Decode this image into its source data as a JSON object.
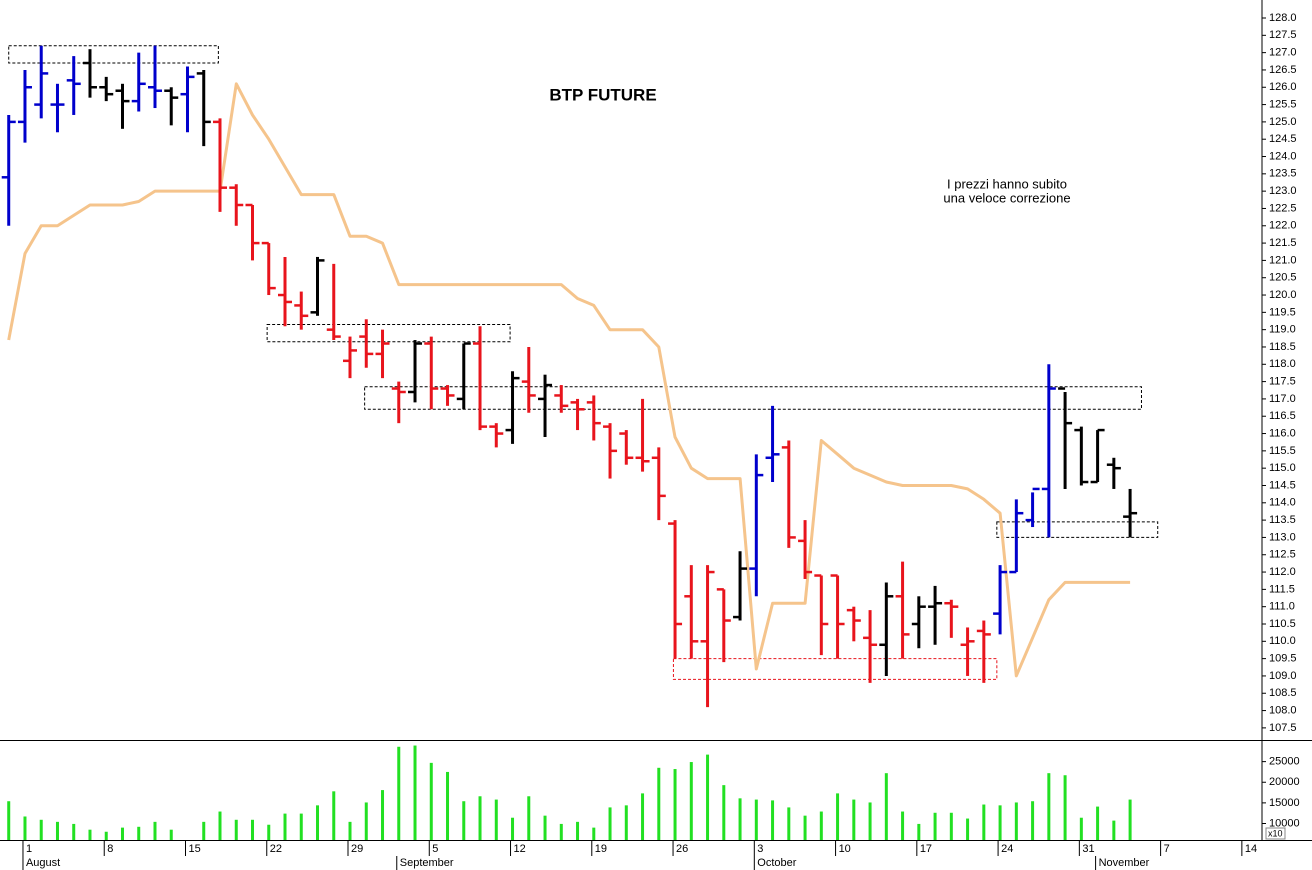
{
  "chart_data": [
    {
      "type": "ohlc",
      "title": "BTP  FUTURE",
      "annotation": [
        "I prezzi hanno subito",
        "una veloce correzione"
      ],
      "categories": [
        null,
        "1",
        null,
        null,
        null,
        null,
        "8",
        null,
        null,
        null,
        null,
        "15",
        null,
        null,
        null,
        null,
        "22",
        null,
        null,
        null,
        null,
        "29",
        null,
        null,
        null,
        null,
        "5",
        null,
        null,
        null,
        null,
        "12",
        null,
        null,
        null,
        null,
        "19",
        null,
        null,
        null,
        null,
        "26",
        null,
        null,
        null,
        null,
        "3",
        null,
        null,
        null,
        null,
        "10",
        null,
        null,
        null,
        null,
        "17",
        null,
        null,
        null,
        null,
        "24",
        null,
        null,
        null,
        null,
        "31",
        null,
        null,
        null,
        null,
        "7",
        null,
        null,
        null,
        null,
        "14"
      ],
      "months": [
        {
          "label": "August",
          "index": 1
        },
        {
          "label": "September",
          "index": 24
        },
        {
          "label": "October",
          "index": 46
        },
        {
          "label": "November",
          "index": 67
        }
      ],
      "open": [
        123.4,
        125.0,
        125.5,
        125.5,
        126.2,
        126.7,
        126.0,
        125.9,
        125.6,
        126.0,
        125.9,
        125.8,
        126.4,
        125.0,
        123.1,
        122.6,
        121.5,
        120.0,
        119.7,
        119.5,
        119.0,
        118.1,
        118.8,
        118.3,
        117.3,
        117.2,
        118.6,
        117.3,
        117.0,
        118.6,
        116.2,
        116.1,
        117.5,
        117.0,
        117.1,
        116.9,
        116.9,
        116.2,
        116.0,
        115.3,
        115.3,
        113.4,
        111.3,
        110.0,
        111.5,
        110.7,
        112.1,
        115.3,
        115.6,
        112.9,
        111.9,
        111.9,
        110.9,
        110.1,
        109.9,
        111.3,
        110.5,
        111.0,
        111.1,
        109.9,
        110.3,
        110.8,
        112.0,
        113.5,
        114.4,
        117.3,
        116.1,
        114.6,
        115.1,
        113.6,
        null,
        null,
        null,
        null,
        null,
        null,
        null
      ],
      "high": [
        125.2,
        126.5,
        127.2,
        126.1,
        126.9,
        127.1,
        126.3,
        126.1,
        127.0,
        127.2,
        126.0,
        126.6,
        126.5,
        125.1,
        123.2,
        122.6,
        121.5,
        121.1,
        120.1,
        121.1,
        120.9,
        118.8,
        119.3,
        119.0,
        117.5,
        118.7,
        118.8,
        117.4,
        118.6,
        119.1,
        116.3,
        117.8,
        118.5,
        117.7,
        117.4,
        117.0,
        117.1,
        116.3,
        116.1,
        117.0,
        115.6,
        113.5,
        112.2,
        112.2,
        111.5,
        112.6,
        115.4,
        116.8,
        115.8,
        113.5,
        111.9,
        111.9,
        111.0,
        110.9,
        111.7,
        112.3,
        111.3,
        111.6,
        111.2,
        110.4,
        110.6,
        112.2,
        114.1,
        114.3,
        118.0,
        117.2,
        116.2,
        116.1,
        115.3,
        114.4,
        null,
        null,
        null,
        null,
        null,
        null,
        null
      ],
      "low": [
        122.0,
        124.4,
        125.1,
        124.7,
        125.2,
        125.7,
        125.6,
        124.8,
        125.3,
        125.4,
        124.9,
        124.7,
        124.3,
        122.4,
        122.0,
        121.0,
        120.0,
        119.1,
        119.0,
        119.4,
        118.7,
        117.6,
        117.9,
        117.6,
        116.3,
        116.9,
        116.7,
        116.8,
        116.7,
        116.1,
        115.6,
        115.7,
        116.6,
        115.9,
        116.6,
        116.1,
        115.8,
        114.7,
        115.1,
        114.9,
        113.5,
        109.5,
        109.5,
        108.1,
        109.4,
        110.6,
        111.3,
        114.6,
        112.7,
        111.8,
        109.6,
        109.5,
        110.0,
        108.8,
        109.0,
        109.5,
        109.8,
        109.9,
        110.1,
        109.0,
        108.8,
        110.2,
        112.0,
        113.3,
        113.0,
        114.4,
        114.5,
        114.6,
        114.4,
        113.0,
        null,
        null,
        null,
        null,
        null,
        null,
        null
      ],
      "close": [
        125.0,
        126.0,
        126.4,
        125.5,
        126.1,
        126.0,
        125.8,
        125.6,
        126.1,
        125.9,
        125.7,
        126.3,
        125.0,
        123.1,
        122.6,
        121.5,
        120.2,
        119.8,
        119.4,
        121.0,
        118.8,
        118.4,
        118.3,
        118.6,
        117.2,
        118.6,
        117.3,
        117.1,
        118.6,
        116.2,
        116.0,
        117.6,
        117.1,
        117.4,
        116.8,
        116.7,
        116.3,
        115.5,
        115.3,
        115.2,
        114.2,
        110.5,
        110.0,
        112.0,
        110.6,
        112.1,
        114.8,
        115.4,
        113.0,
        112.0,
        110.5,
        110.5,
        110.6,
        109.9,
        111.3,
        110.2,
        111.0,
        111.1,
        111.0,
        110.0,
        110.2,
        112.0,
        113.7,
        114.4,
        117.3,
        116.3,
        114.6,
        116.1,
        115.0,
        113.7,
        null,
        null,
        null,
        null,
        null,
        null,
        null
      ],
      "bar_colors": [
        "#0000cc",
        "#0000cc",
        "#0000cc",
        "#0000cc",
        "#0000cc",
        "#000000",
        "#000000",
        "#000000",
        "#0000cc",
        "#0000cc",
        "#000000",
        "#0000cc",
        "#000000",
        "#e8141c",
        "#e8141c",
        "#e8141c",
        "#e8141c",
        "#e8141c",
        "#e8141c",
        "#000000",
        "#e8141c",
        "#e8141c",
        "#e8141c",
        "#e8141c",
        "#e8141c",
        "#000000",
        "#e8141c",
        "#e8141c",
        "#000000",
        "#e8141c",
        "#e8141c",
        "#000000",
        "#e8141c",
        "#000000",
        "#e8141c",
        "#e8141c",
        "#e8141c",
        "#e8141c",
        "#e8141c",
        "#e8141c",
        "#e8141c",
        "#e8141c",
        "#e8141c",
        "#e8141c",
        "#e8141c",
        "#000000",
        "#0000cc",
        "#0000cc",
        "#e8141c",
        "#e8141c",
        "#e8141c",
        "#e8141c",
        "#e8141c",
        "#e8141c",
        "#000000",
        "#e8141c",
        "#000000",
        "#000000",
        "#e8141c",
        "#e8141c",
        "#e8141c",
        "#0000cc",
        "#0000cc",
        "#0000cc",
        "#0000cc",
        "#000000",
        "#000000",
        "#000000",
        "#000000",
        "#000000",
        null,
        null,
        null,
        null,
        null,
        null,
        null
      ],
      "line": {
        "color": "#f5c48c",
        "values": [
          118.7,
          121.2,
          122.0,
          122.0,
          122.3,
          122.6,
          122.6,
          122.6,
          122.7,
          123.0,
          123.0,
          123.0,
          123.0,
          123.0,
          126.1,
          125.2,
          124.5,
          123.7,
          122.9,
          122.9,
          122.9,
          121.7,
          121.7,
          121.5,
          120.3,
          120.3,
          120.3,
          120.3,
          120.3,
          120.3,
          120.3,
          120.3,
          120.3,
          120.3,
          120.3,
          119.9,
          119.7,
          119.0,
          119.0,
          119.0,
          118.5,
          115.9,
          115.0,
          114.7,
          114.7,
          114.7,
          109.2,
          111.1,
          111.1,
          111.1,
          115.8,
          115.4,
          115.0,
          114.8,
          114.6,
          114.5,
          114.5,
          114.5,
          114.5,
          114.4,
          114.1,
          113.7,
          109.0,
          110.1,
          111.2,
          111.7,
          111.7,
          111.7,
          111.7,
          111.7,
          null,
          null,
          null,
          null,
          null,
          null,
          null
        ]
      },
      "boxes": [
        {
          "from": 0,
          "to": 12.9,
          "low": 126.7,
          "high": 127.2,
          "color": "#000000"
        },
        {
          "from": 15.9,
          "to": 30.85,
          "low": 118.65,
          "high": 119.15,
          "color": "#000000"
        },
        {
          "from": 21.9,
          "to": 69.7,
          "low": 116.7,
          "high": 117.35,
          "color": "#000000"
        },
        {
          "from": 40.9,
          "to": 60.8,
          "low": 108.9,
          "high": 109.5,
          "color": "#e8141c"
        },
        {
          "from": 60.8,
          "to": 70.7,
          "low": 113.0,
          "high": 113.45,
          "color": "#000000"
        }
      ],
      "ylim": [
        107.15,
        128.52
      ],
      "yticks": [
        107.5,
        {
          "value": 108.0,
          "label": "108.0"
        },
        108.5,
        {
          "value": 109.0,
          "label": "109.0"
        },
        109.5,
        {
          "value": 110.0,
          "label": "110.0"
        },
        110.5,
        {
          "value": 111.0,
          "label": "111.0"
        },
        111.5,
        {
          "value": 112.0,
          "label": "112.0"
        },
        112.5,
        {
          "value": 113.0,
          "label": "113.0"
        },
        113.5,
        {
          "value": 114.0,
          "label": "114.0"
        },
        114.5,
        {
          "value": 115.0,
          "label": "115.0"
        },
        115.5,
        {
          "value": 116.0,
          "label": "116.0"
        },
        116.5,
        {
          "value": 117.0,
          "label": "117.0"
        },
        117.5,
        {
          "value": 118.0,
          "label": "118.0"
        },
        118.5,
        {
          "value": 119.0,
          "label": "119.0"
        },
        119.5,
        {
          "value": 120.0,
          "label": "120.0"
        },
        120.5,
        {
          "value": 121.0,
          "label": "121.0"
        },
        121.5,
        {
          "value": 122.0,
          "label": "122.0"
        },
        122.5,
        {
          "value": 123.0,
          "label": "123.0"
        },
        123.5,
        {
          "value": 124.0,
          "label": "124.0"
        },
        124.5,
        {
          "value": 125.0,
          "label": "125.0"
        },
        125.5,
        {
          "value": 126.0,
          "label": "126.0"
        },
        126.5,
        {
          "value": 127.0,
          "label": "127.0"
        },
        127.5,
        {
          "value": 128.0,
          "label": "128.0"
        }
      ]
    },
    {
      "type": "bar",
      "color": "#22e022",
      "axis_note": "x10",
      "values": [
        15400,
        11700,
        10900,
        10400,
        9900,
        8500,
        8000,
        9000,
        9200,
        10400,
        8500,
        null,
        10400,
        12900,
        10900,
        10900,
        9700,
        12400,
        12400,
        14400,
        17800,
        10400,
        15100,
        18100,
        28600,
        28900,
        24700,
        22500,
        15400,
        16600,
        15800,
        11400,
        16600,
        11900,
        9900,
        10400,
        9000,
        13900,
        14400,
        17300,
        23500,
        23200,
        24900,
        26700,
        19300,
        16100,
        15800,
        15600,
        13900,
        11900,
        12900,
        17300,
        15800,
        15100,
        22200,
        12900,
        9900,
        12600,
        12600,
        11200,
        14600,
        14400,
        15100,
        15400,
        22200,
        21700,
        11400,
        14100,
        10700,
        15800,
        null,
        null,
        null,
        null,
        null,
        null,
        null
      ],
      "ylim": [
        6000,
        30000
      ],
      "yticks": [
        10000,
        15000,
        20000,
        25000
      ]
    }
  ]
}
